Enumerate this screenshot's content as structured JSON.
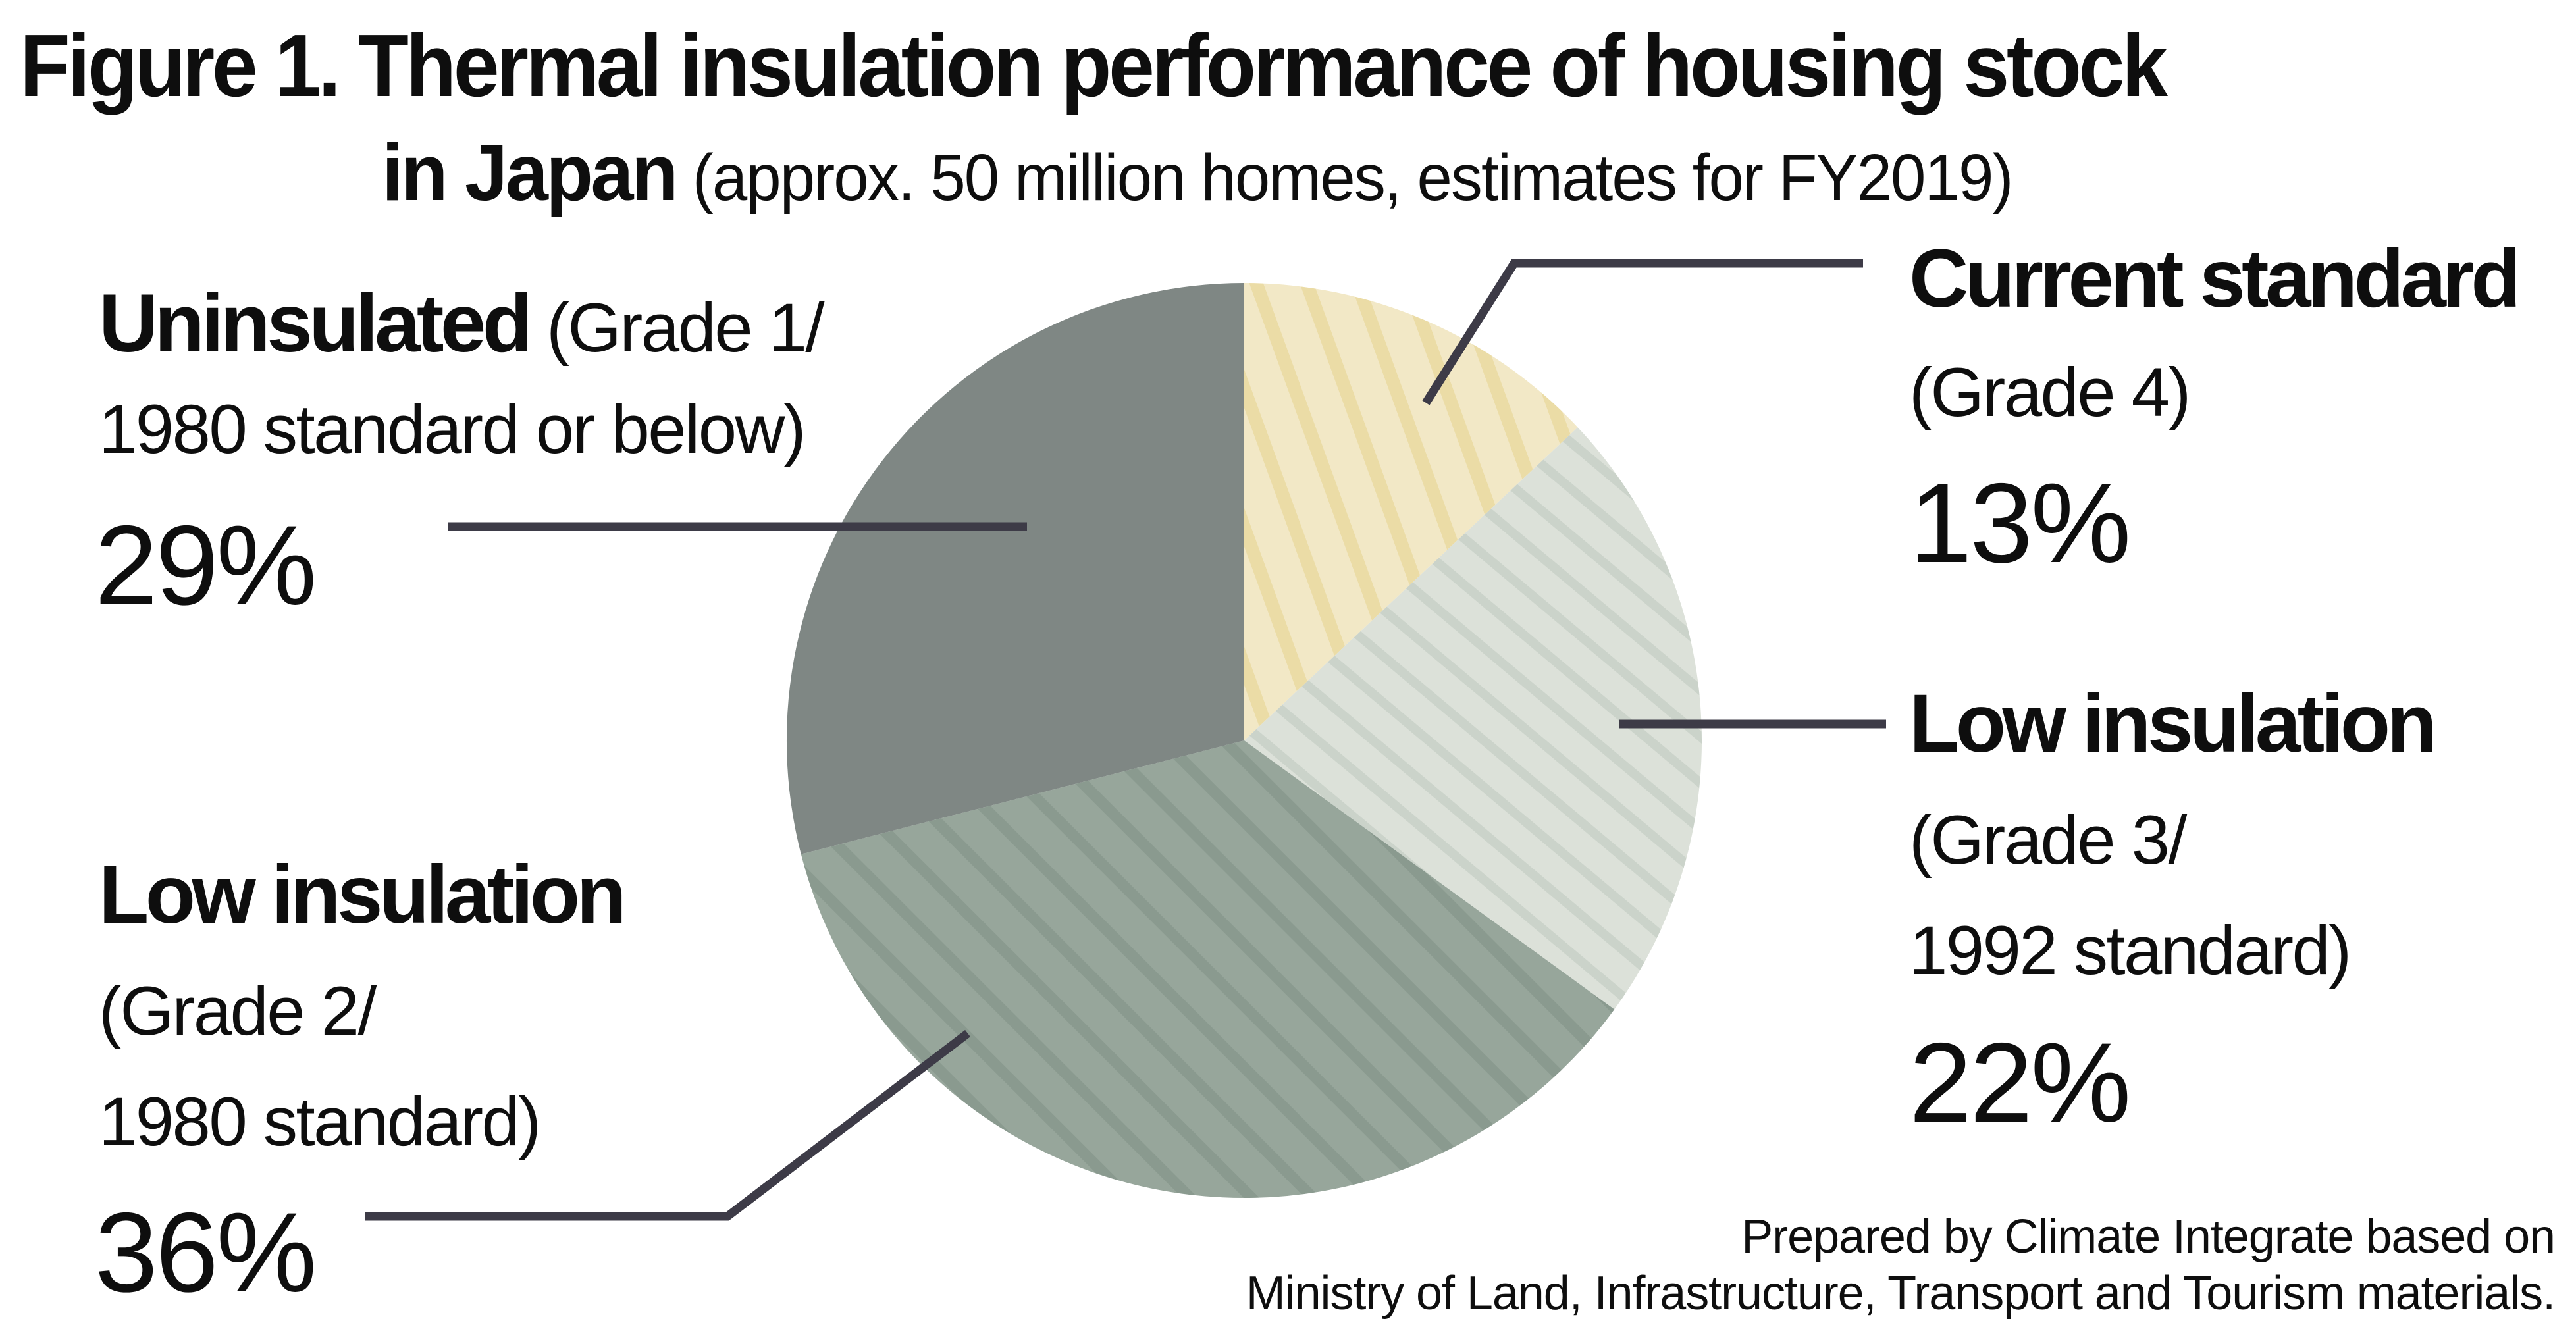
{
  "title": {
    "line1": "Figure 1. Thermal insulation performance of housing stock",
    "line2_bold": "in Japan",
    "line2_rest": " (approx. 50 million homes, estimates for FY2019)"
  },
  "labels": {
    "uninsulated": {
      "name": "Uninsulated",
      "detail1": " (Grade 1/",
      "detail2": "1980 standard or below)",
      "value": "29%"
    },
    "current_standard": {
      "name": "Current standard",
      "detail1": "(Grade 4)",
      "value": "13%"
    },
    "low_insulation_right": {
      "name": "Low insulation",
      "detail1": "(Grade 3/",
      "detail2": "1992 standard)",
      "value": "22%"
    },
    "low_insulation_left": {
      "name": "Low insulation",
      "detail1": "(Grade 2/",
      "detail2": "1980 standard)",
      "value": "36%"
    }
  },
  "credit": {
    "line1": "Prepared by Climate Integrate based on",
    "line2": "Ministry of Land, Infrastructure, Transport and Tourism materials."
  },
  "colors": {
    "background": "#ffffff",
    "text": "#0e0e0e",
    "leader_line": "#3d3b47"
  },
  "chart_data": {
    "type": "pie",
    "title": "Figure 1. Thermal insulation performance of housing stock in Japan (approx. 50 million homes, estimates for FY2019)",
    "unit": "%",
    "start_angle_deg": 0,
    "direction": "clockwise",
    "legend_position": "callouts",
    "segments": [
      {
        "label": "Current standard",
        "sublabel": "(Grade 4)",
        "value": 13,
        "color": "#f2e8c6",
        "hatch": true,
        "hatch_color": "#ebdca6"
      },
      {
        "label": "Low insulation",
        "sublabel": "(Grade 3/ 1992 standard)",
        "value": 22,
        "color": "#dce1d9",
        "hatch": true,
        "hatch_color": "#cbd3ca"
      },
      {
        "label": "Low insulation",
        "sublabel": "(Grade 2/ 1980 standard)",
        "value": 36,
        "color": "#97a69b",
        "hatch": true,
        "hatch_color": "#8a9a8f"
      },
      {
        "label": "Uninsulated",
        "sublabel": "(Grade 1/ 1980 standard or below)",
        "value": 29,
        "color": "#7f8784",
        "hatch": false,
        "hatch_color": null
      }
    ]
  }
}
